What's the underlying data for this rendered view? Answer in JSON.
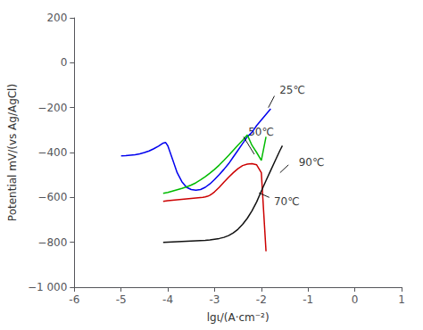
{
  "chart_data": {
    "type": "line",
    "xlabel": "lgι/(A·cm⁻²)",
    "ylabel": "Potential mV/(vs Ag/AgCl)",
    "xlim": [
      -6,
      1
    ],
    "ylim": [
      -1000,
      200
    ],
    "xticks": [
      -6,
      -5,
      -4,
      -3,
      -2,
      -1,
      0,
      1
    ],
    "yticks": [
      {
        "value": -1000,
        "label": "−1 000"
      },
      {
        "value": -800,
        "label": "−800"
      },
      {
        "value": -600,
        "label": "−600"
      },
      {
        "value": -400,
        "label": "−400"
      },
      {
        "value": -200,
        "label": "−200"
      },
      0,
      200
    ],
    "grid": false,
    "series": [
      {
        "color": "#0000ee",
        "x": [
          -5.0,
          -4.9,
          -4.8,
          -4.7,
          -4.6,
          -4.5,
          -4.4,
          -4.3,
          -4.2,
          -4.15,
          -4.1,
          -4.05,
          -4.0,
          -3.9,
          -3.8,
          -3.7,
          -3.6,
          -3.5,
          -3.4,
          -3.3,
          -3.2,
          -3.1,
          -3.0,
          -2.9,
          -2.8,
          -2.7,
          -2.6,
          -2.5,
          -2.4,
          -2.3,
          -2.2,
          -2.1,
          -2.0,
          -1.9,
          -1.8
        ],
        "values": [
          -415,
          -414,
          -412,
          -410,
          -406,
          -400,
          -393,
          -383,
          -372,
          -365,
          -358,
          -355,
          -370,
          -430,
          -490,
          -530,
          -555,
          -565,
          -568,
          -565,
          -555,
          -540,
          -520,
          -498,
          -475,
          -450,
          -420,
          -390,
          -360,
          -330,
          -310,
          -280,
          -255,
          -230,
          -205
        ]
      },
      {
        "color": "#00bb00",
        "x": [
          -4.1,
          -4.0,
          -3.9,
          -3.8,
          -3.7,
          -3.6,
          -3.5,
          -3.4,
          -3.3,
          -3.2,
          -3.1,
          -3.0,
          -2.9,
          -2.8,
          -2.7,
          -2.6,
          -2.5,
          -2.4,
          -2.3,
          -2.2,
          -2.1,
          -2.0,
          -1.9
        ],
        "values": [
          -582,
          -578,
          -572,
          -566,
          -560,
          -553,
          -545,
          -535,
          -522,
          -508,
          -492,
          -475,
          -456,
          -435,
          -413,
          -390,
          -367,
          -345,
          -322,
          -368,
          -400,
          -435,
          -330
        ]
      },
      {
        "color": "#cc0000",
        "x": [
          -4.1,
          -4.0,
          -3.95,
          -3.9,
          -3.85,
          -3.8,
          -3.75,
          -3.7,
          -3.65,
          -3.6,
          -3.55,
          -3.5,
          -3.45,
          -3.4,
          -3.35,
          -3.3,
          -3.25,
          -3.2,
          -3.15,
          -3.1,
          -3.05,
          -3.0,
          -2.9,
          -2.8,
          -2.7,
          -2.6,
          -2.5,
          -2.4,
          -2.3,
          -2.2,
          -2.1,
          -2.0,
          -1.9
        ],
        "values": [
          -618,
          -615,
          -614,
          -613,
          -612,
          -611,
          -610,
          -609,
          -608,
          -607,
          -606,
          -605,
          -604,
          -603,
          -602,
          -601,
          -600,
          -598,
          -595,
          -590,
          -583,
          -575,
          -555,
          -532,
          -510,
          -490,
          -472,
          -458,
          -452,
          -450,
          -455,
          -490,
          -840
        ]
      },
      {
        "color": "#111111",
        "x": [
          -4.1,
          -4.0,
          -3.9,
          -3.8,
          -3.7,
          -3.6,
          -3.5,
          -3.4,
          -3.3,
          -3.2,
          -3.1,
          -3.0,
          -2.9,
          -2.8,
          -2.7,
          -2.6,
          -2.5,
          -2.4,
          -2.3,
          -2.2,
          -2.1,
          -2.0,
          -1.9,
          -1.8,
          -1.7,
          -1.6,
          -1.55
        ],
        "values": [
          -800,
          -799,
          -798,
          -797,
          -796,
          -795,
          -794,
          -793,
          -792,
          -791,
          -789,
          -786,
          -783,
          -778,
          -770,
          -758,
          -742,
          -720,
          -693,
          -660,
          -620,
          -572,
          -525,
          -480,
          -435,
          -390,
          -370
        ]
      }
    ],
    "annotations": [
      {
        "text": "25℃",
        "x": -1.63,
        "y": -123,
        "line": [
          [
            -1.72,
            -148
          ],
          [
            -1.85,
            -200
          ]
        ]
      },
      {
        "text": "50℃",
        "x": -2.3,
        "y": -308,
        "line": [
          [
            -2.38,
            -330
          ],
          [
            -2.15,
            -408
          ]
        ]
      },
      {
        "text": "90℃",
        "x": -1.22,
        "y": -442,
        "line": [
          [
            -1.42,
            -455
          ],
          [
            -1.6,
            -490
          ]
        ]
      },
      {
        "text": "70℃",
        "x": -1.75,
        "y": -618,
        "line": [
          [
            -1.83,
            -600
          ],
          [
            -2.05,
            -580
          ]
        ]
      }
    ]
  }
}
